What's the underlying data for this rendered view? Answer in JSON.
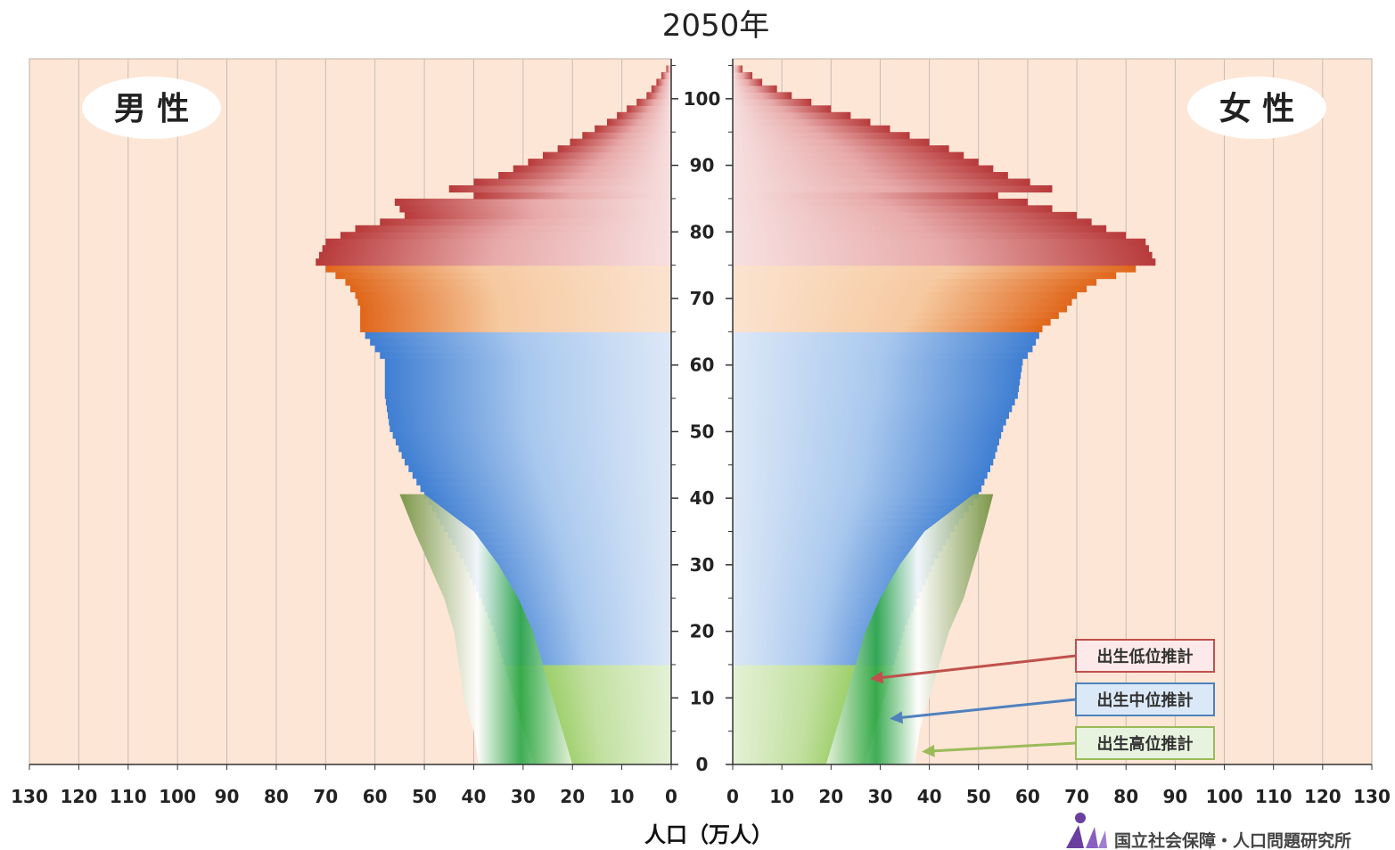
{
  "chart_data": {
    "type": "bar",
    "subtype": "population-pyramid",
    "title": "2050年",
    "xlabel": "人口（万人）",
    "ylabel": "",
    "panels": [
      {
        "name": "男 性",
        "side": "left"
      },
      {
        "name": "女 性",
        "side": "right"
      }
    ],
    "xlim": [
      0,
      130
    ],
    "ylim": [
      0,
      105
    ],
    "x_ticks_left": [
      "130",
      "120",
      "110",
      "100",
      "90",
      "80",
      "70",
      "60",
      "50",
      "40",
      "30",
      "20",
      "10",
      "0"
    ],
    "x_ticks_right": [
      "0",
      "10",
      "20",
      "30",
      "40",
      "50",
      "60",
      "70",
      "80",
      "90",
      "100",
      "110",
      "120",
      "130"
    ],
    "age_ticks": [
      "0",
      "10",
      "20",
      "30",
      "40",
      "50",
      "60",
      "70",
      "80",
      "90",
      "100"
    ],
    "age_bands": [
      {
        "from": 0,
        "to": 15,
        "color": "#8cc63f"
      },
      {
        "from": 15,
        "to": 65,
        "color": "#4a86d4"
      },
      {
        "from": 65,
        "to": 75,
        "color": "#e8731f"
      },
      {
        "from": 75,
        "to": 106,
        "color": "#b83a3a"
      }
    ],
    "male_medium": {
      "ages": [
        0,
        5,
        10,
        15,
        20,
        25,
        30,
        35,
        40,
        45,
        50,
        55,
        60,
        62,
        65,
        68,
        70,
        72,
        75,
        78,
        80,
        82,
        84,
        85,
        86,
        88,
        90,
        92,
        94,
        96,
        98,
        100,
        102,
        104
      ],
      "values": [
        28,
        30,
        32,
        34,
        36,
        39,
        42,
        46,
        50,
        54,
        57,
        58,
        58,
        60,
        63,
        63,
        64,
        66,
        72,
        70,
        64,
        54,
        56,
        40,
        45,
        35,
        29,
        23,
        18,
        13,
        9,
        5,
        3,
        1
      ]
    },
    "female_medium": {
      "ages": [
        0,
        5,
        10,
        15,
        20,
        25,
        30,
        35,
        40,
        45,
        50,
        55,
        60,
        62,
        65,
        68,
        70,
        72,
        75,
        78,
        80,
        82,
        84,
        85,
        86,
        88,
        90,
        92,
        94,
        96,
        98,
        100,
        102,
        104
      ],
      "values": [
        27,
        29,
        31,
        33,
        35,
        38,
        41,
        45,
        50,
        53,
        55,
        58,
        59,
        61,
        63,
        68,
        70,
        74,
        86,
        84,
        76,
        70,
        60,
        54,
        65,
        56,
        50,
        44,
        36,
        28,
        20,
        12,
        6,
        2
      ]
    },
    "male_low_births": {
      "ages": [
        0,
        5,
        10,
        15,
        20,
        25,
        30,
        35,
        40
      ],
      "values": [
        20,
        22,
        24,
        26,
        28,
        31,
        35,
        40,
        50
      ]
    },
    "male_high_births": {
      "ages": [
        0,
        5,
        10,
        15,
        20,
        25,
        30,
        35,
        40
      ],
      "values": [
        39,
        40,
        42,
        43,
        44,
        46,
        49,
        52,
        55
      ]
    },
    "female_low_births": {
      "ages": [
        0,
        5,
        10,
        15,
        20,
        25,
        30,
        35,
        40
      ],
      "values": [
        19,
        21,
        23,
        25,
        27,
        30,
        34,
        39,
        49
      ]
    },
    "female_high_births": {
      "ages": [
        0,
        5,
        10,
        15,
        20,
        25,
        30,
        35,
        40
      ],
      "values": [
        37,
        38,
        40,
        42,
        44,
        47,
        49,
        51,
        53
      ]
    },
    "legend": [
      {
        "label": "出生低位推計",
        "color": "#c0504d",
        "points_to_age": 13
      },
      {
        "label": "出生中位推計",
        "color": "#4f81bd",
        "points_to_age": 7
      },
      {
        "label": "出生高位推計",
        "color": "#9bbb59",
        "points_to_age": 2
      }
    ]
  },
  "source": "国立社会保障・人口問題研究所"
}
